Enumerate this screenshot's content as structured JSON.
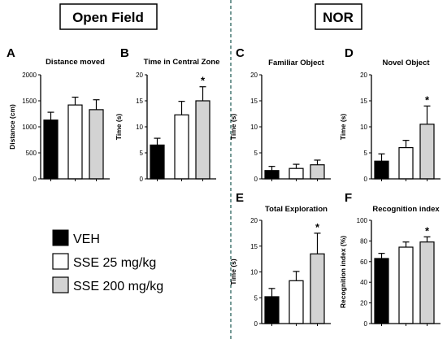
{
  "sections": {
    "left_title": "Open Field",
    "right_title": "NOR"
  },
  "legend": [
    {
      "label": "VEH",
      "color": "#000000"
    },
    {
      "label": "SSE 25 mg/kg",
      "color": "#ffffff"
    },
    {
      "label": "SSE 200 mg/kg",
      "color": "#d3d3d3"
    }
  ],
  "chart_data": [
    {
      "type": "bar",
      "panel": "A",
      "title": "Distance moved",
      "ylabel": "Distance (cm)",
      "ylim": [
        0,
        2000
      ],
      "yticks": [
        0,
        500,
        1000,
        1500,
        2000
      ],
      "series": [
        {
          "name": "VEH",
          "values": [
            1130
          ],
          "errors": [
            150
          ],
          "color": "#000000",
          "sig": ""
        },
        {
          "name": "SSE 25 mg/kg",
          "values": [
            1420
          ],
          "errors": [
            150
          ],
          "color": "#ffffff",
          "sig": ""
        },
        {
          "name": "SSE 200 mg/kg",
          "values": [
            1330
          ],
          "errors": [
            190
          ],
          "color": "#d3d3d3",
          "sig": ""
        }
      ]
    },
    {
      "type": "bar",
      "panel": "B",
      "title": "Time in Central Zone",
      "ylabel": "Time (s)",
      "ylim": [
        0,
        20
      ],
      "yticks": [
        0,
        5,
        10,
        15,
        20
      ],
      "series": [
        {
          "name": "VEH",
          "values": [
            6.5
          ],
          "errors": [
            1.3
          ],
          "color": "#000000",
          "sig": ""
        },
        {
          "name": "SSE 25 mg/kg",
          "values": [
            12.3
          ],
          "errors": [
            2.6
          ],
          "color": "#ffffff",
          "sig": ""
        },
        {
          "name": "SSE 200 mg/kg",
          "values": [
            15.0
          ],
          "errors": [
            2.7
          ],
          "color": "#d3d3d3",
          "sig": "*"
        }
      ]
    },
    {
      "type": "bar",
      "panel": "C",
      "title": "Familiar Object",
      "ylabel": "Time (s)",
      "ylim": [
        0,
        20
      ],
      "yticks": [
        0,
        5,
        10,
        15,
        20
      ],
      "series": [
        {
          "name": "VEH",
          "values": [
            1.6
          ],
          "errors": [
            0.8
          ],
          "color": "#000000",
          "sig": ""
        },
        {
          "name": "SSE 25 mg/kg",
          "values": [
            2.0
          ],
          "errors": [
            0.8
          ],
          "color": "#ffffff",
          "sig": ""
        },
        {
          "name": "SSE 200 mg/kg",
          "values": [
            2.7
          ],
          "errors": [
            0.9
          ],
          "color": "#d3d3d3",
          "sig": ""
        }
      ]
    },
    {
      "type": "bar",
      "panel": "D",
      "title": "Novel Object",
      "ylabel": "Time (s)",
      "ylim": [
        0,
        20
      ],
      "yticks": [
        0,
        5,
        10,
        15,
        20
      ],
      "series": [
        {
          "name": "VEH",
          "values": [
            3.4
          ],
          "errors": [
            1.4
          ],
          "color": "#000000",
          "sig": ""
        },
        {
          "name": "SSE 25 mg/kg",
          "values": [
            6.0
          ],
          "errors": [
            1.4
          ],
          "color": "#ffffff",
          "sig": ""
        },
        {
          "name": "SSE 200 mg/kg",
          "values": [
            10.5
          ],
          "errors": [
            3.5
          ],
          "color": "#d3d3d3",
          "sig": "*"
        }
      ]
    },
    {
      "type": "bar",
      "panel": "E",
      "title": "Total Exploration",
      "ylabel": "Time (s)",
      "ylim": [
        0,
        20
      ],
      "yticks": [
        0,
        5,
        10,
        15,
        20
      ],
      "series": [
        {
          "name": "VEH",
          "values": [
            5.2
          ],
          "errors": [
            1.6
          ],
          "color": "#000000",
          "sig": ""
        },
        {
          "name": "SSE 25 mg/kg",
          "values": [
            8.3
          ],
          "errors": [
            1.8
          ],
          "color": "#ffffff",
          "sig": ""
        },
        {
          "name": "SSE 200 mg/kg",
          "values": [
            13.5
          ],
          "errors": [
            4.0
          ],
          "color": "#d3d3d3",
          "sig": "*"
        }
      ]
    },
    {
      "type": "bar",
      "panel": "F",
      "title": "Recognition index",
      "ylabel": "Recognition index (%)",
      "ylim": [
        0,
        100
      ],
      "yticks": [
        0,
        20,
        40,
        60,
        80,
        100
      ],
      "series": [
        {
          "name": "VEH",
          "values": [
            63
          ],
          "errors": [
            5
          ],
          "color": "#000000",
          "sig": ""
        },
        {
          "name": "SSE 25 mg/kg",
          "values": [
            74
          ],
          "errors": [
            5
          ],
          "color": "#ffffff",
          "sig": ""
        },
        {
          "name": "SSE 200 mg/kg",
          "values": [
            79
          ],
          "errors": [
            5
          ],
          "color": "#d3d3d3",
          "sig": "*"
        }
      ]
    }
  ]
}
